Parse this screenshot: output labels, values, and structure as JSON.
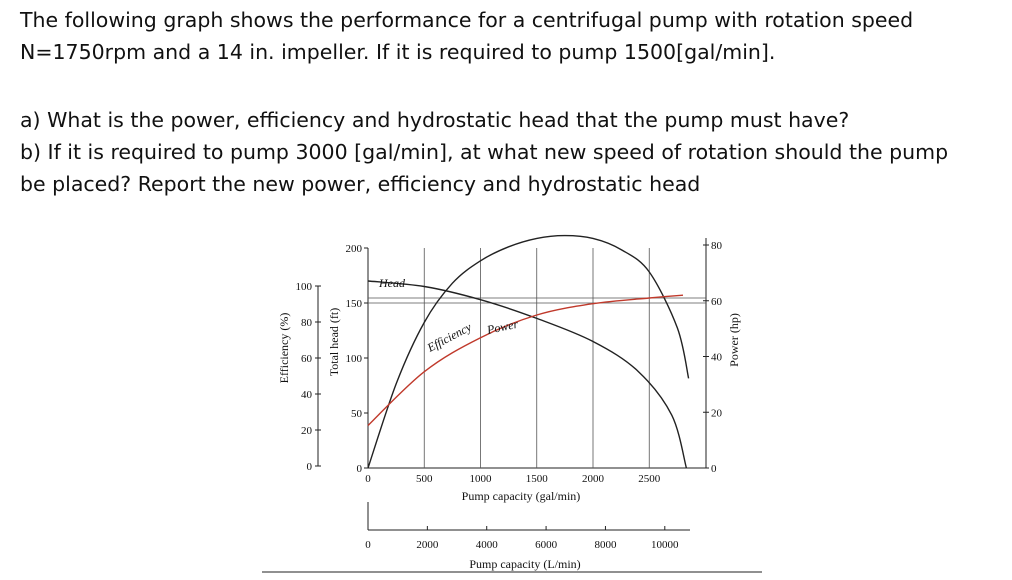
{
  "question": {
    "intro_line1": "The following graph shows the performance for a centrifugal pump with rotation speed",
    "intro_line2": "N=1750rpm and a 14 in. impeller. If it is required to pump 1500[gal/min].",
    "part_a": "a) What is the power, efficiency and hydrostatic head that the pump must have?",
    "part_b_line1": "b) If it is required to pump 3000 [gal/min], at what new speed of rotation should the pump",
    "part_b_line2": "be placed? Report the new power, efficiency and hydrostatic head"
  },
  "chart_data": {
    "type": "line",
    "xlabel": "Pump capacity (gal/min)",
    "xlabel_secondary": "Pump capacity (L/min)",
    "ylabel_efficiency": "Efficiency (%)",
    "ylabel_head": "Total head (ft)",
    "ylabel_power": "Power (hp)",
    "x_ticks": [
      "0",
      "500",
      "1000",
      "1500",
      "2000",
      "2500"
    ],
    "x_ticks_secondary": [
      "0",
      "2000",
      "4000",
      "6000",
      "8000",
      "10000"
    ],
    "efficiency_ticks": [
      "0",
      "20",
      "40",
      "60",
      "80",
      "100"
    ],
    "head_ticks": [
      "0",
      "50",
      "100",
      "150",
      "200"
    ],
    "power_ticks": [
      "0",
      "20",
      "40",
      "60",
      "80"
    ],
    "xlim": [
      0,
      2900
    ],
    "head_ylim": [
      0,
      200
    ],
    "efficiency_ylim": [
      0,
      100
    ],
    "power_ylim": [
      0,
      80
    ],
    "grid": true,
    "curve_labels": {
      "head": "Head",
      "efficiency": "Efficiency",
      "power": "Power"
    },
    "series": [
      {
        "name": "Head",
        "axis": "head",
        "color": "#222222",
        "x": [
          0,
          500,
          1000,
          1500,
          2000,
          2400,
          2700,
          2830
        ],
        "y": [
          170,
          165,
          153,
          136,
          115,
          88,
          48,
          0
        ]
      },
      {
        "name": "Efficiency",
        "axis": "efficiency",
        "color": "#222222",
        "x": [
          0,
          250,
          500,
          750,
          1000,
          1250,
          1500,
          1750,
          2000,
          2250,
          2500,
          2750,
          2850
        ],
        "y": [
          0,
          30,
          52,
          66,
          74,
          79,
          82,
          83,
          82,
          78,
          70,
          50,
          32
        ]
      },
      {
        "name": "Power",
        "axis": "power",
        "color": "#c0392b",
        "x": [
          0,
          500,
          1000,
          1500,
          2000,
          2500,
          2800
        ],
        "y": [
          15,
          34,
          46,
          54,
          58,
          60,
          61
        ]
      }
    ]
  }
}
